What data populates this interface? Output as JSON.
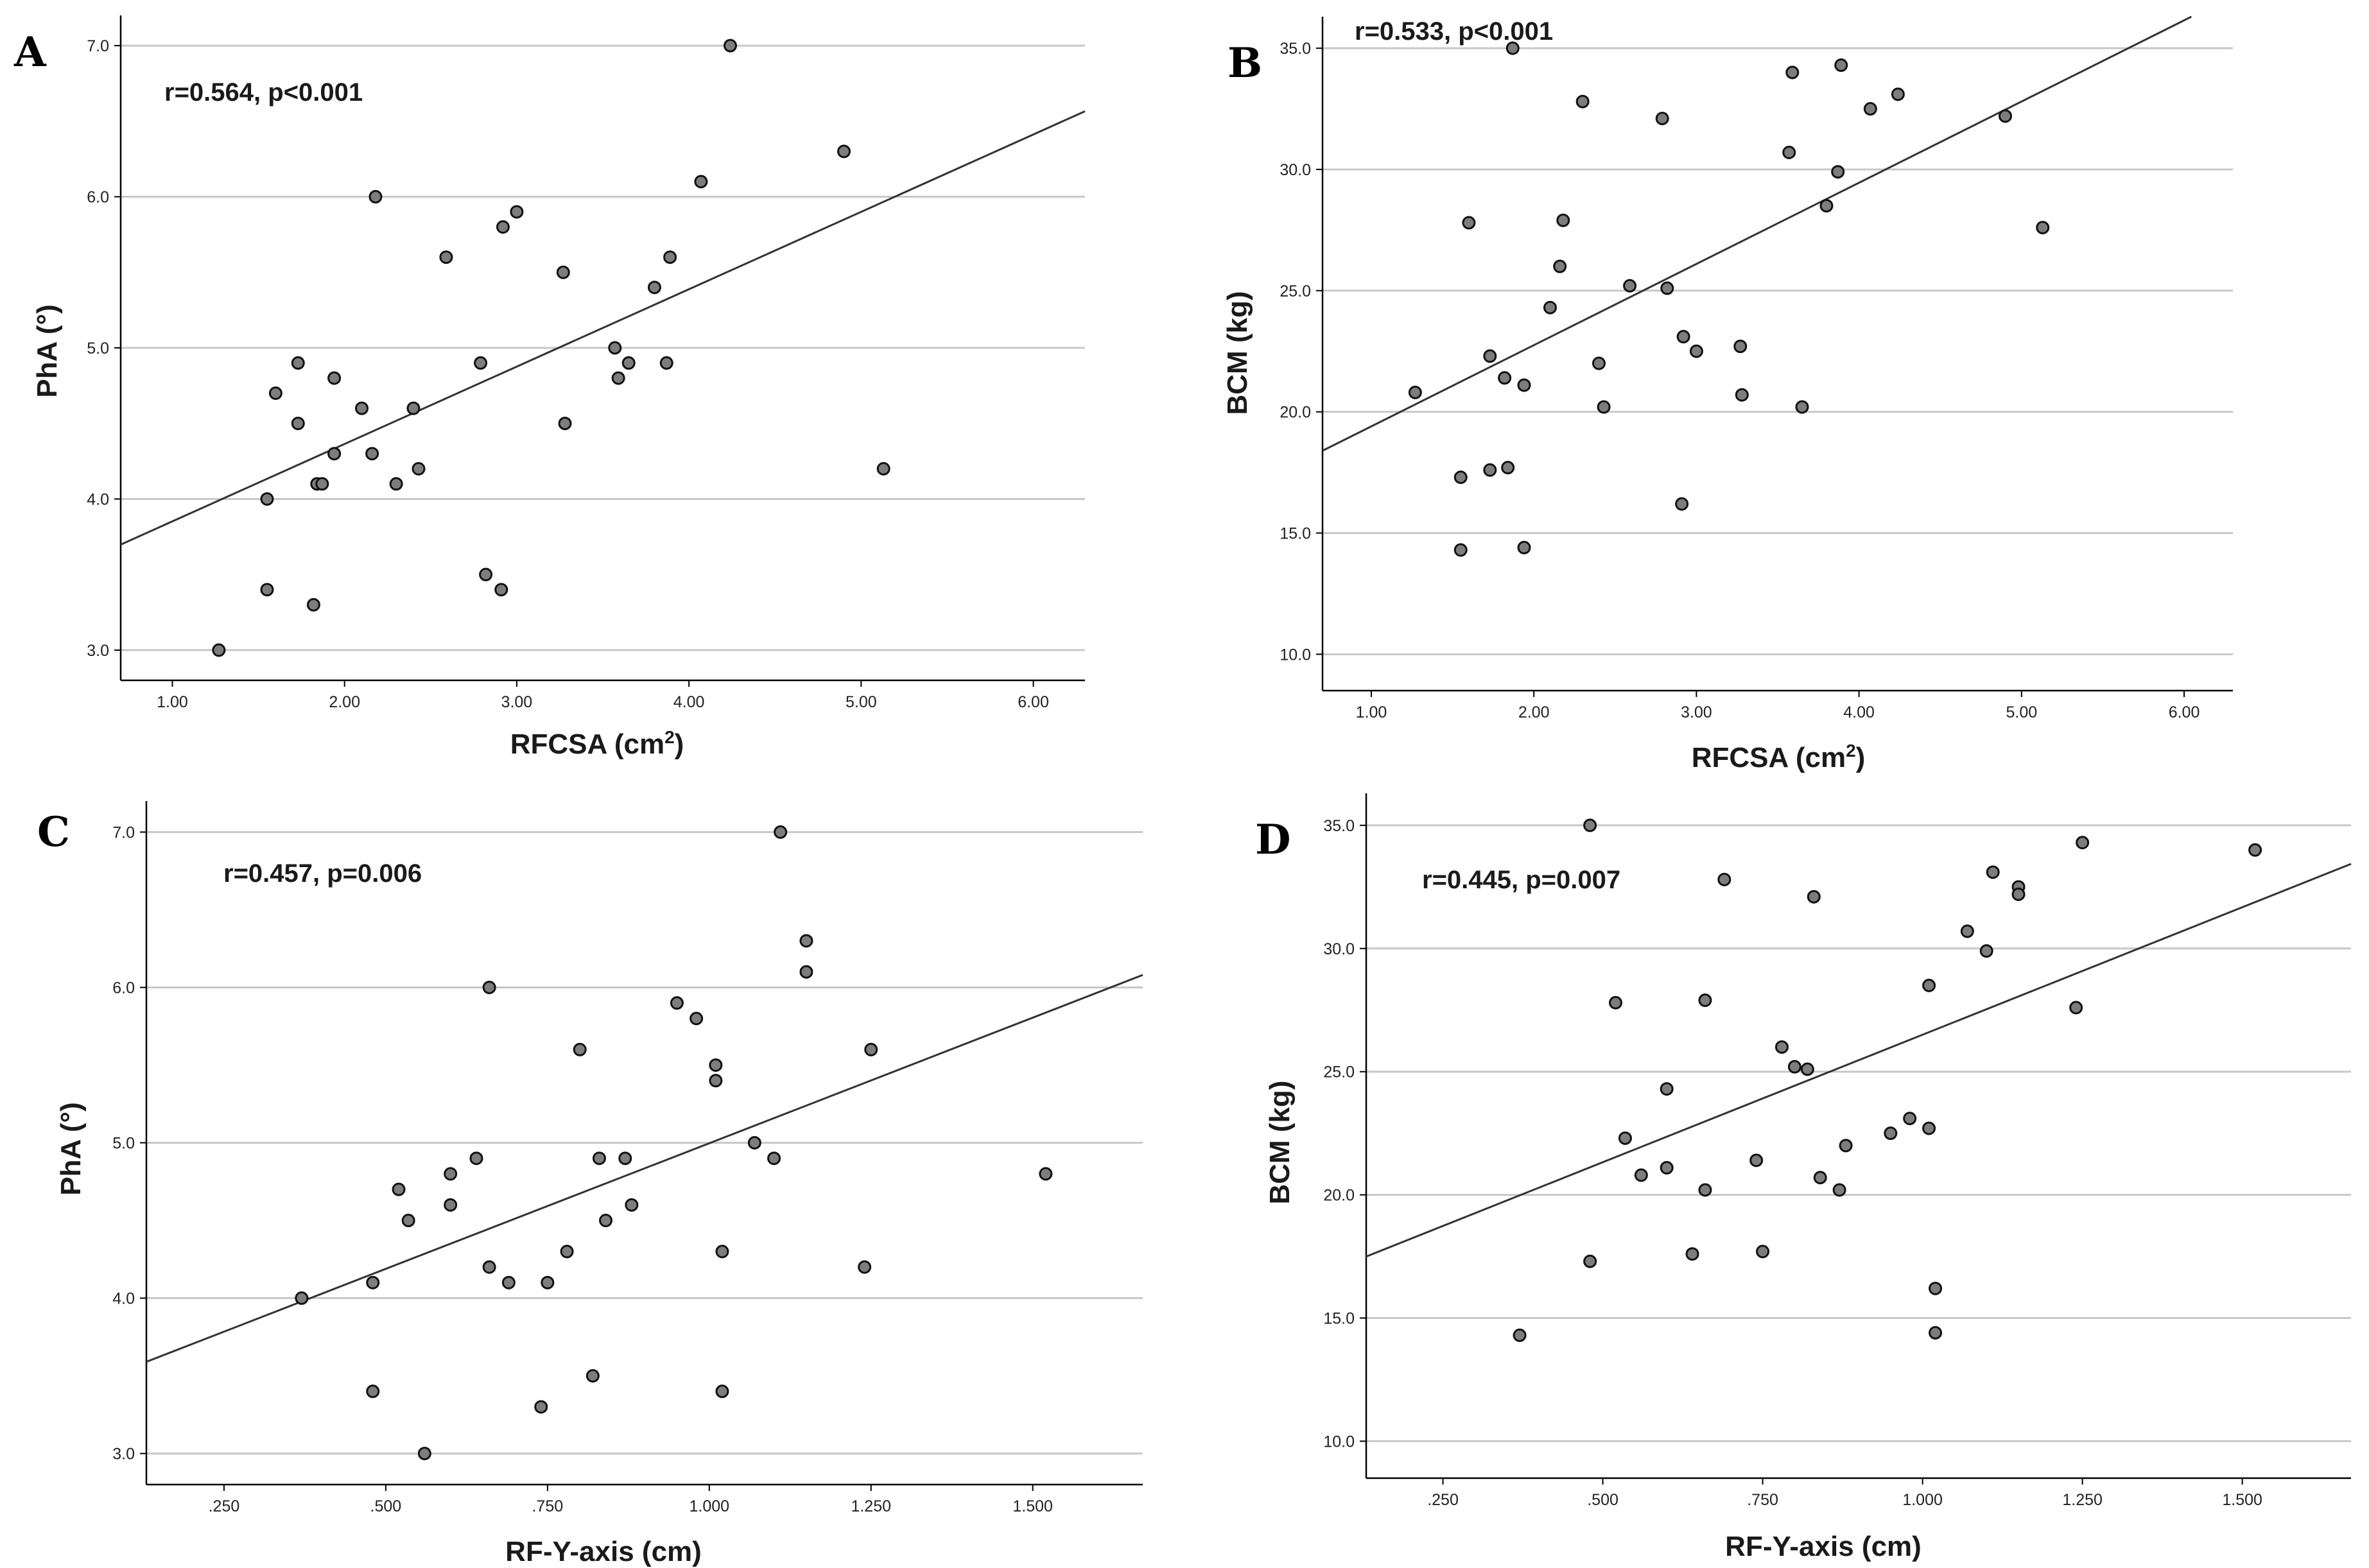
{
  "chart_data": [
    {
      "type": "scatter",
      "panel": "A",
      "annotation": "r=0.564, p<0.001",
      "xlabel": "RFCSA (cm",
      "xlabel_sup": "2",
      "xlabel_end": ")",
      "ylabel": "PhA (°)",
      "xlim": [
        0.7,
        6.3
      ],
      "ylim": [
        2.8,
        7.2
      ],
      "x_ticks": [
        1,
        2,
        3,
        4,
        5,
        6
      ],
      "x_tick_labels": [
        "1.00",
        "2.00",
        "3.00",
        "4.00",
        "5.00",
        "6.00"
      ],
      "y_ticks": [
        3,
        4,
        5,
        6,
        7
      ],
      "y_tick_labels": [
        "3.0",
        "4.0",
        "5.0",
        "6.0",
        "7.0"
      ],
      "grid": "horizontal",
      "fit_line": {
        "slope": 0.512,
        "intercept": 3.34
      },
      "points": [
        [
          1.27,
          3.0
        ],
        [
          1.55,
          4.0
        ],
        [
          1.55,
          3.4
        ],
        [
          1.6,
          4.7
        ],
        [
          1.73,
          4.9
        ],
        [
          1.73,
          4.5
        ],
        [
          1.82,
          3.3
        ],
        [
          1.84,
          4.1
        ],
        [
          1.87,
          4.1
        ],
        [
          1.94,
          4.8
        ],
        [
          1.94,
          4.3
        ],
        [
          2.1,
          4.6
        ],
        [
          2.16,
          4.3
        ],
        [
          2.18,
          6.0
        ],
        [
          2.3,
          4.1
        ],
        [
          2.4,
          4.6
        ],
        [
          2.43,
          4.2
        ],
        [
          2.59,
          5.6
        ],
        [
          2.79,
          4.9
        ],
        [
          2.82,
          3.5
        ],
        [
          2.91,
          3.4
        ],
        [
          2.92,
          5.8
        ],
        [
          3.0,
          5.9
        ],
        [
          3.27,
          5.5
        ],
        [
          3.28,
          4.5
        ],
        [
          3.57,
          5.0
        ],
        [
          3.59,
          4.8
        ],
        [
          3.65,
          4.9
        ],
        [
          3.8,
          5.4
        ],
        [
          3.87,
          4.9
        ],
        [
          3.89,
          5.6
        ],
        [
          4.07,
          6.1
        ],
        [
          4.24,
          7.0
        ],
        [
          4.9,
          6.3
        ],
        [
          5.13,
          4.2
        ]
      ]
    },
    {
      "type": "scatter",
      "panel": "B",
      "annotation": "r=0.533, p<0.001",
      "xlabel": "RFCSA (cm",
      "xlabel_sup": "2",
      "xlabel_end": ")",
      "ylabel": "BCM (kg)",
      "xlim": [
        0.7,
        6.3
      ],
      "ylim": [
        8.5,
        36.3
      ],
      "x_ticks": [
        1,
        2,
        3,
        4,
        5,
        6
      ],
      "x_tick_labels": [
        "1.00",
        "2.00",
        "3.00",
        "4.00",
        "5.00",
        "6.00"
      ],
      "y_ticks": [
        10,
        15,
        20,
        25,
        30,
        35
      ],
      "y_tick_labels": [
        "10.0",
        "15.0",
        "20.0",
        "25.0",
        "30.0",
        "35.0"
      ],
      "grid": "horizontal",
      "fit_line": {
        "slope": 3.35,
        "intercept": 16.05
      },
      "points": [
        [
          1.27,
          20.8
        ],
        [
          1.55,
          17.3
        ],
        [
          1.55,
          14.3
        ],
        [
          1.6,
          27.8
        ],
        [
          1.73,
          22.3
        ],
        [
          1.73,
          17.6
        ],
        [
          1.82,
          21.4
        ],
        [
          1.84,
          17.7
        ],
        [
          1.87,
          35.0
        ],
        [
          1.94,
          21.1
        ],
        [
          1.94,
          14.4
        ],
        [
          2.1,
          24.3
        ],
        [
          2.16,
          26.0
        ],
        [
          2.18,
          27.9
        ],
        [
          2.3,
          32.8
        ],
        [
          2.4,
          22.0
        ],
        [
          2.43,
          20.2
        ],
        [
          2.59,
          25.2
        ],
        [
          2.79,
          32.1
        ],
        [
          2.82,
          25.1
        ],
        [
          2.91,
          16.2
        ],
        [
          2.92,
          23.1
        ],
        [
          3.0,
          22.5
        ],
        [
          3.27,
          22.7
        ],
        [
          3.28,
          20.7
        ],
        [
          3.57,
          30.7
        ],
        [
          3.59,
          34.0
        ],
        [
          3.65,
          20.2
        ],
        [
          3.8,
          28.5
        ],
        [
          3.87,
          29.9
        ],
        [
          3.89,
          34.3
        ],
        [
          4.07,
          32.5
        ],
        [
          4.24,
          33.1
        ],
        [
          4.9,
          32.2
        ],
        [
          5.13,
          27.6
        ]
      ]
    },
    {
      "type": "scatter",
      "panel": "C",
      "annotation": "r=0.457, p=0.006",
      "xlabel": "RF-Y-axis (cm)",
      "ylabel": "PhA (°)",
      "xlim": [
        0.13,
        1.67
      ],
      "ylim": [
        2.8,
        7.2
      ],
      "x_ticks": [
        0.25,
        0.5,
        0.75,
        1.0,
        1.25,
        1.5
      ],
      "x_tick_labels": [
        ".250",
        ".500",
        ".750",
        "1.000",
        "1.250",
        "1.500"
      ],
      "y_ticks": [
        3,
        4,
        5,
        6,
        7
      ],
      "y_tick_labels": [
        "3.0",
        "4.0",
        "5.0",
        "6.0",
        "7.0"
      ],
      "grid": "horizontal",
      "fit_line": {
        "slope": 1.617,
        "intercept": 3.38
      },
      "points": [
        [
          0.37,
          4.0
        ],
        [
          0.48,
          4.1
        ],
        [
          0.48,
          3.4
        ],
        [
          0.52,
          4.7
        ],
        [
          0.535,
          4.5
        ],
        [
          0.56,
          3.0
        ],
        [
          0.6,
          4.8
        ],
        [
          0.6,
          4.6
        ],
        [
          0.64,
          4.9
        ],
        [
          0.66,
          6.0
        ],
        [
          0.66,
          4.2
        ],
        [
          0.69,
          4.1
        ],
        [
          0.74,
          3.3
        ],
        [
          0.75,
          4.1
        ],
        [
          0.78,
          4.3
        ],
        [
          0.8,
          5.6
        ],
        [
          0.82,
          3.5
        ],
        [
          0.83,
          4.9
        ],
        [
          0.84,
          4.5
        ],
        [
          0.87,
          4.9
        ],
        [
          0.88,
          4.6
        ],
        [
          0.95,
          5.9
        ],
        [
          0.98,
          5.8
        ],
        [
          1.01,
          5.5
        ],
        [
          1.01,
          5.4
        ],
        [
          1.02,
          4.3
        ],
        [
          1.02,
          3.4
        ],
        [
          1.07,
          5.0
        ],
        [
          1.1,
          4.9
        ],
        [
          1.11,
          7.0
        ],
        [
          1.15,
          6.3
        ],
        [
          1.15,
          6.1
        ],
        [
          1.24,
          4.2
        ],
        [
          1.25,
          5.6
        ],
        [
          1.52,
          4.8
        ]
      ]
    },
    {
      "type": "scatter",
      "panel": "D",
      "annotation": "r=0.445, p=0.007",
      "xlabel": "RF-Y-axis (cm)",
      "ylabel": "BCM (kg)",
      "xlim": [
        0.13,
        1.67
      ],
      "ylim": [
        8.5,
        36.3
      ],
      "x_ticks": [
        0.25,
        0.5,
        0.75,
        1.0,
        1.25,
        1.5
      ],
      "x_tick_labels": [
        ".250",
        ".500",
        ".750",
        "1.000",
        "1.250",
        "1.500"
      ],
      "y_ticks": [
        10,
        15,
        20,
        25,
        30,
        35
      ],
      "y_tick_labels": [
        "10.0",
        "15.0",
        "20.0",
        "25.0",
        "30.0",
        "35.0"
      ],
      "grid": "horizontal",
      "fit_line": {
        "slope": 10.35,
        "intercept": 16.15
      },
      "points": [
        [
          0.37,
          14.3
        ],
        [
          0.48,
          35.0
        ],
        [
          0.48,
          17.3
        ],
        [
          0.52,
          27.8
        ],
        [
          0.535,
          22.3
        ],
        [
          0.56,
          20.8
        ],
        [
          0.6,
          24.3
        ],
        [
          0.6,
          21.1
        ],
        [
          0.64,
          17.6
        ],
        [
          0.66,
          27.9
        ],
        [
          0.66,
          20.2
        ],
        [
          0.69,
          32.8
        ],
        [
          0.74,
          21.4
        ],
        [
          0.75,
          17.7
        ],
        [
          0.78,
          26.0
        ],
        [
          0.8,
          25.2
        ],
        [
          0.82,
          25.1
        ],
        [
          0.83,
          32.1
        ],
        [
          0.84,
          20.7
        ],
        [
          0.87,
          20.2
        ],
        [
          0.88,
          22.0
        ],
        [
          0.95,
          22.5
        ],
        [
          0.98,
          23.1
        ],
        [
          1.01,
          28.5
        ],
        [
          1.01,
          22.7
        ],
        [
          1.02,
          16.2
        ],
        [
          1.02,
          14.4
        ],
        [
          1.07,
          30.7
        ],
        [
          1.1,
          29.9
        ],
        [
          1.11,
          33.1
        ],
        [
          1.15,
          32.5
        ],
        [
          1.15,
          32.2
        ],
        [
          1.24,
          27.6
        ],
        [
          1.25,
          34.3
        ],
        [
          1.52,
          34.0
        ]
      ]
    }
  ]
}
